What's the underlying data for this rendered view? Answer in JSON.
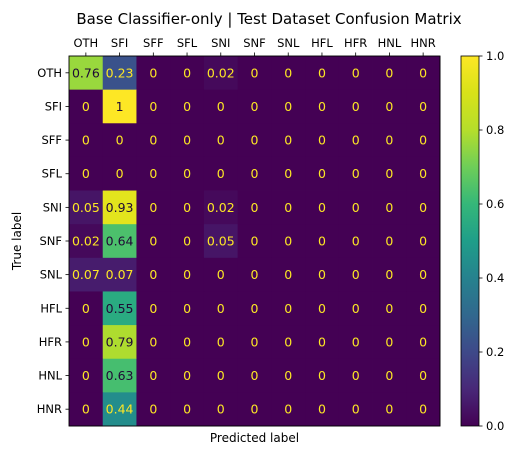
{
  "chart_data": {
    "type": "heatmap",
    "title": "Base Classifier-only | Test Dataset Confusion Matrix",
    "xlabel": "Predicted label",
    "ylabel": "True label",
    "x_categories": [
      "OTH",
      "SFI",
      "SFF",
      "SFL",
      "SNI",
      "SNF",
      "SNL",
      "HFL",
      "HFR",
      "HNL",
      "HNR"
    ],
    "y_categories": [
      "OTH",
      "SFI",
      "SFF",
      "SFL",
      "SNI",
      "SNF",
      "SNL",
      "HFL",
      "HFR",
      "HNL",
      "HNR"
    ],
    "values": [
      [
        0.76,
        0.23,
        0,
        0,
        0.02,
        0,
        0,
        0,
        0,
        0,
        0
      ],
      [
        0,
        1,
        0,
        0,
        0,
        0,
        0,
        0,
        0,
        0,
        0
      ],
      [
        0,
        0,
        0,
        0,
        0,
        0,
        0,
        0,
        0,
        0,
        0
      ],
      [
        0,
        0,
        0,
        0,
        0,
        0,
        0,
        0,
        0,
        0,
        0
      ],
      [
        0.05,
        0.93,
        0,
        0,
        0.02,
        0,
        0,
        0,
        0,
        0,
        0
      ],
      [
        0.02,
        0.64,
        0,
        0,
        0.05,
        0,
        0,
        0,
        0,
        0,
        0
      ],
      [
        0.07,
        0.07,
        0,
        0,
        0,
        0,
        0,
        0,
        0,
        0,
        0
      ],
      [
        0,
        0.55,
        0,
        0,
        0,
        0,
        0,
        0,
        0,
        0,
        0
      ],
      [
        0,
        0.79,
        0,
        0,
        0,
        0,
        0,
        0,
        0,
        0,
        0
      ],
      [
        0,
        0.63,
        0,
        0,
        0,
        0,
        0,
        0,
        0,
        0,
        0
      ],
      [
        0,
        0.44,
        0,
        0,
        0,
        0,
        0,
        0,
        0,
        0,
        0
      ]
    ],
    "cell_labels": [
      [
        "0.76",
        "0.23",
        "0",
        "0",
        "0.02",
        "0",
        "0",
        "0",
        "0",
        "0",
        "0"
      ],
      [
        "0",
        "1",
        "0",
        "0",
        "0",
        "0",
        "0",
        "0",
        "0",
        "0",
        "0"
      ],
      [
        "0",
        "0",
        "0",
        "0",
        "0",
        "0",
        "0",
        "0",
        "0",
        "0",
        "0"
      ],
      [
        "0",
        "0",
        "0",
        "0",
        "0",
        "0",
        "0",
        "0",
        "0",
        "0",
        "0"
      ],
      [
        "0.05",
        "0.93",
        "0",
        "0",
        "0.02",
        "0",
        "0",
        "0",
        "0",
        "0",
        "0"
      ],
      [
        "0.02",
        "0.64",
        "0",
        "0",
        "0.05",
        "0",
        "0",
        "0",
        "0",
        "0",
        "0"
      ],
      [
        "0.07",
        "0.07",
        "0",
        "0",
        "0",
        "0",
        "0",
        "0",
        "0",
        "0",
        "0"
      ],
      [
        "0",
        "0.55",
        "0",
        "0",
        "0",
        "0",
        "0",
        "0",
        "0",
        "0",
        "0"
      ],
      [
        "0",
        "0.79",
        "0",
        "0",
        "0",
        "0",
        "0",
        "0",
        "0",
        "0",
        "0"
      ],
      [
        "0",
        "0.63",
        "0",
        "0",
        "0",
        "0",
        "0",
        "0",
        "0",
        "0",
        "0"
      ],
      [
        "0",
        "0.44",
        "0",
        "0",
        "0",
        "0",
        "0",
        "0",
        "0",
        "0",
        "0"
      ]
    ],
    "colormap": "viridis",
    "colorbar": {
      "range": [
        0,
        1
      ],
      "ticks": [
        0.0,
        0.2,
        0.4,
        0.6,
        0.8,
        1.0
      ],
      "tick_labels": [
        "0.0",
        "0.2",
        "0.4",
        "0.6",
        "0.8",
        "1.0"
      ]
    },
    "x_tick_position": "top",
    "grid": false
  }
}
